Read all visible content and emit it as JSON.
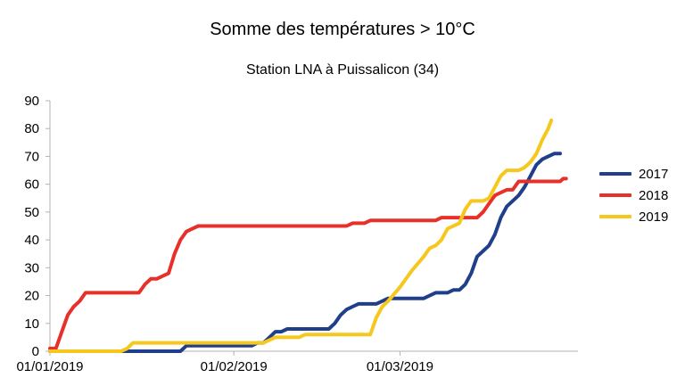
{
  "chart_data": {
    "type": "line",
    "title": "Somme des températures > 10°C",
    "subtitle": "Station LNA à Puissalicon (34)",
    "ylim": [
      0,
      90
    ],
    "xlim": [
      0,
      89
    ],
    "grid": false,
    "legend_position": "right",
    "y_ticks": [
      "0",
      "10",
      "20",
      "30",
      "40",
      "50",
      "60",
      "70",
      "80",
      "90"
    ],
    "x_ticks": [
      {
        "label": "01/01/2019",
        "day": 0
      },
      {
        "label": "01/02/2019",
        "day": 31
      },
      {
        "label": "01/03/2019",
        "day": 59
      }
    ],
    "series": [
      {
        "name": "2017",
        "color": "#1f3f8a",
        "points": [
          [
            0,
            0
          ],
          [
            22,
            0
          ],
          [
            23,
            2
          ],
          [
            27,
            2
          ],
          [
            34,
            2
          ],
          [
            35,
            3
          ],
          [
            36,
            3
          ],
          [
            37,
            5
          ],
          [
            38,
            7
          ],
          [
            39,
            7
          ],
          [
            40,
            8
          ],
          [
            43,
            8
          ],
          [
            47,
            8
          ],
          [
            48,
            10
          ],
          [
            49,
            13
          ],
          [
            50,
            15
          ],
          [
            51,
            16
          ],
          [
            52,
            17
          ],
          [
            55,
            17
          ],
          [
            56,
            18
          ],
          [
            57,
            19
          ],
          [
            60,
            19
          ],
          [
            63,
            19
          ],
          [
            64,
            20
          ],
          [
            65,
            21
          ],
          [
            67,
            21
          ],
          [
            68,
            22
          ],
          [
            69,
            22
          ],
          [
            70,
            24
          ],
          [
            71,
            28
          ],
          [
            72,
            34
          ],
          [
            73,
            36
          ],
          [
            74,
            38
          ],
          [
            75,
            42
          ],
          [
            76,
            48
          ],
          [
            77,
            52
          ],
          [
            78,
            54
          ],
          [
            79,
            56
          ],
          [
            80,
            59
          ],
          [
            81,
            63
          ],
          [
            82,
            67
          ],
          [
            83,
            69
          ],
          [
            84,
            70
          ],
          [
            85,
            71
          ],
          [
            86,
            71
          ]
        ]
      },
      {
        "name": "2018",
        "color": "#e8302a",
        "points": [
          [
            0,
            1
          ],
          [
            1,
            1
          ],
          [
            2,
            7
          ],
          [
            3,
            13
          ],
          [
            4,
            16
          ],
          [
            5,
            18
          ],
          [
            6,
            21
          ],
          [
            15,
            21
          ],
          [
            16,
            24
          ],
          [
            17,
            26
          ],
          [
            18,
            26
          ],
          [
            20,
            28
          ],
          [
            21,
            35
          ],
          [
            22,
            40
          ],
          [
            23,
            43
          ],
          [
            24,
            44
          ],
          [
            25,
            45
          ],
          [
            50,
            45
          ],
          [
            51,
            46
          ],
          [
            53,
            46
          ],
          [
            54,
            47
          ],
          [
            65,
            47
          ],
          [
            66,
            48
          ],
          [
            72,
            48
          ],
          [
            73,
            50
          ],
          [
            74,
            53
          ],
          [
            75,
            56
          ],
          [
            76,
            57
          ],
          [
            77,
            58
          ],
          [
            78,
            58
          ],
          [
            79,
            61
          ],
          [
            86,
            61
          ],
          [
            86.5,
            62
          ],
          [
            87,
            62
          ]
        ]
      },
      {
        "name": "2019",
        "color": "#f6c81e",
        "points": [
          [
            0,
            0
          ],
          [
            12,
            0
          ],
          [
            13,
            1
          ],
          [
            14,
            3
          ],
          [
            36,
            3
          ],
          [
            37,
            4
          ],
          [
            38,
            5
          ],
          [
            42,
            5
          ],
          [
            43,
            6
          ],
          [
            54,
            6
          ],
          [
            55,
            12
          ],
          [
            56,
            16
          ],
          [
            57,
            18
          ],
          [
            59,
            23
          ],
          [
            61,
            29
          ],
          [
            63,
            34
          ],
          [
            64,
            37
          ],
          [
            65,
            38
          ],
          [
            66,
            40
          ],
          [
            67,
            44
          ],
          [
            68,
            45
          ],
          [
            69,
            46
          ],
          [
            70,
            51
          ],
          [
            71,
            54
          ],
          [
            73,
            54
          ],
          [
            74,
            55
          ],
          [
            75,
            59
          ],
          [
            76,
            63
          ],
          [
            77,
            65
          ],
          [
            79,
            65
          ],
          [
            80,
            66
          ],
          [
            81,
            68
          ],
          [
            82,
            71
          ],
          [
            83,
            76
          ],
          [
            84,
            80
          ],
          [
            84.5,
            83
          ]
        ]
      }
    ]
  }
}
